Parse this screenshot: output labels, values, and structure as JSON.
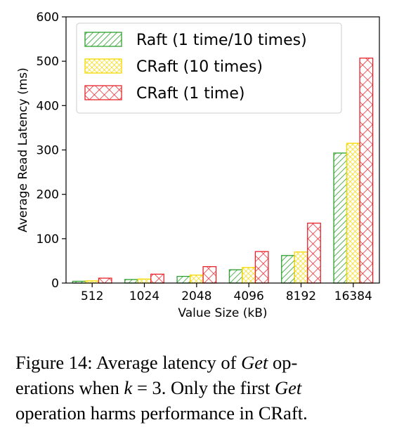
{
  "chart_data": {
    "type": "bar",
    "xlabel": "Value Size (kB)",
    "ylabel": "Average Read Latency (ms)",
    "ylim": [
      0,
      600
    ],
    "yticks": [
      0,
      100,
      200,
      300,
      400,
      500,
      600
    ],
    "categories": [
      "512",
      "1024",
      "2048",
      "4096",
      "8192",
      "16384"
    ],
    "legend_position": "top-left",
    "series": [
      {
        "name": "Raft (1 time/10 times)",
        "values": [
          4,
          8,
          15,
          30,
          62,
          293
        ],
        "color": "#2ca02c",
        "pattern": "diagonal-hatch"
      },
      {
        "name": "CRaft (10 times)",
        "values": [
          5,
          9,
          18,
          35,
          70,
          315
        ],
        "color": "#f5d800",
        "pattern": "dense-cross-hatch"
      },
      {
        "name": "CRaft (1 time)",
        "values": [
          11,
          20,
          37,
          71,
          135,
          507
        ],
        "color": "#e8222a",
        "pattern": "cross-hatch"
      }
    ]
  },
  "caption": {
    "line1_a": "Figure 14: Average latency of ",
    "line1_b": "Get",
    "line1_c": " op-",
    "line2_a": "erations when ",
    "line2_b": "k",
    "line2_c": " = 3. Only the first ",
    "line2_d": "Get",
    "line3": "operation harms performance in CRaft."
  }
}
